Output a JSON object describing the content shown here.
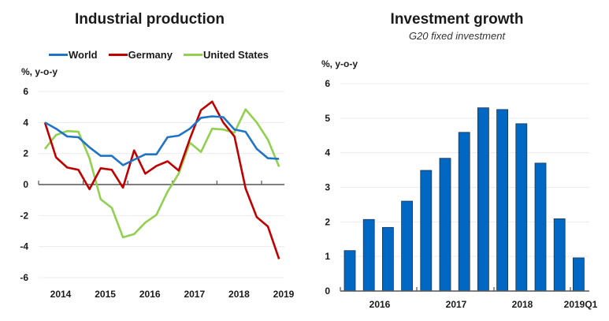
{
  "chart_data": [
    {
      "type": "line",
      "title": "Industrial production",
      "ylabel": "%, y-o-y",
      "xlabel": "",
      "ylim": [
        -6,
        6
      ],
      "yticks": [
        6,
        4,
        2,
        0,
        -2,
        -4,
        -6
      ],
      "xtick_labels": [
        "2014",
        "2015",
        "2016",
        "2017",
        "2018",
        "2019"
      ],
      "grid": true,
      "legend": "top",
      "x": [
        "2014Q1",
        "2014Q2",
        "2014Q3",
        "2014Q4",
        "2015Q1",
        "2015Q2",
        "2015Q3",
        "2015Q4",
        "2016Q1",
        "2016Q2",
        "2016Q3",
        "2016Q4",
        "2017Q1",
        "2017Q2",
        "2017Q3",
        "2017Q4",
        "2018Q1",
        "2018Q2",
        "2018Q3",
        "2018Q4",
        "2019Q1",
        "2019Q2"
      ],
      "series": [
        {
          "name": "World",
          "color": "#1f74c8",
          "values": [
            4.0,
            3.6,
            3.1,
            3.05,
            2.4,
            1.85,
            1.85,
            1.25,
            1.6,
            1.95,
            1.95,
            3.05,
            3.15,
            3.6,
            4.3,
            4.4,
            4.35,
            3.55,
            3.4,
            2.3,
            1.7,
            1.65
          ]
        },
        {
          "name": "Germany",
          "color": "#c00000",
          "values": [
            4.0,
            1.75,
            1.1,
            0.95,
            -0.3,
            1.05,
            0.95,
            -0.2,
            2.2,
            0.7,
            1.2,
            1.5,
            0.9,
            2.95,
            4.8,
            5.35,
            4.0,
            3.1,
            -0.25,
            -2.1,
            -2.7,
            -4.8
          ]
        },
        {
          "name": "United States",
          "color": "#92d050",
          "values": [
            2.3,
            3.2,
            3.45,
            3.4,
            1.7,
            -0.95,
            -1.5,
            -3.4,
            -3.2,
            -2.45,
            -1.95,
            -0.45,
            0.7,
            2.7,
            2.1,
            3.6,
            3.55,
            3.35,
            4.85,
            4.0,
            2.9,
            1.15
          ]
        }
      ]
    },
    {
      "type": "bar",
      "title": "Investment growth",
      "subtitle": "G20 fixed investment",
      "ylabel": "%, y-o-y",
      "xlabel": "",
      "ylim": [
        0,
        6
      ],
      "yticks": [
        6,
        5,
        4,
        3,
        2,
        1,
        0
      ],
      "xtick_labels": [
        "2016",
        "2017",
        "2018",
        "2019Q1"
      ],
      "grid": true,
      "color": "#0068c2",
      "categories": [
        "2016Q1",
        "2016Q2",
        "2016Q3",
        "2016Q4",
        "2017Q1",
        "2017Q2",
        "2017Q3",
        "2017Q4",
        "2018Q1",
        "2018Q2",
        "2018Q3",
        "2018Q4",
        "2019Q1"
      ],
      "values": [
        1.17,
        2.07,
        1.84,
        2.6,
        3.49,
        3.84,
        4.59,
        5.3,
        5.25,
        4.84,
        3.7,
        2.09,
        0.96
      ]
    }
  ]
}
